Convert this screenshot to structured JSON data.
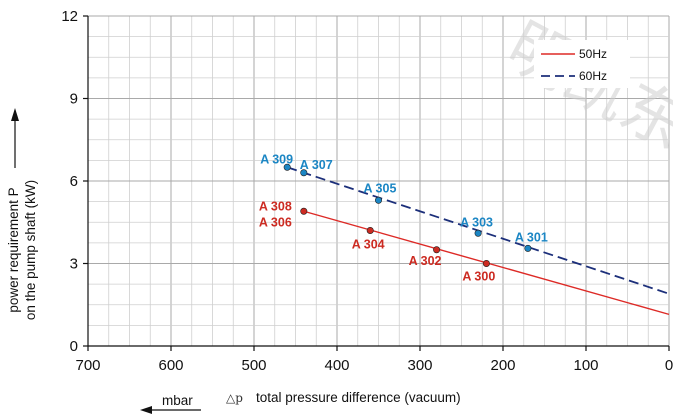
{
  "chart_data": {
    "type": "line",
    "xlabel": "total pressure difference (vacuum)",
    "xlabel_symbol": "△p",
    "x_unit": "mbar",
    "ylabel_line1": "power requirement P",
    "ylabel_line2": "on the pump shaft (kW)",
    "xlim": [
      700,
      0
    ],
    "x_reversed": true,
    "ylim": [
      0,
      12
    ],
    "x_ticks": [
      700,
      600,
      500,
      400,
      300,
      200,
      100,
      0
    ],
    "y_ticks": [
      0,
      3,
      6,
      9,
      12
    ],
    "grid": true,
    "legend_position": "top-right",
    "series": [
      {
        "name": "50Hz",
        "color": "#dd2a26",
        "dash": "solid",
        "x": [
          440,
          0
        ],
        "y": [
          4.9,
          1.15
        ]
      },
      {
        "name": "60Hz",
        "color": "#1c2f7a",
        "dash": "dashed",
        "x": [
          460,
          0
        ],
        "y": [
          6.5,
          1.9
        ]
      }
    ],
    "points": [
      {
        "label": "A 308",
        "x": 440,
        "y": 4.9,
        "color": "#cc2b22",
        "series": "50Hz"
      },
      {
        "label": "A 306",
        "x": 440,
        "y": 4.9,
        "color": "#cc2b22",
        "series": "50Hz"
      },
      {
        "label": "A 304",
        "x": 360,
        "y": 4.2,
        "color": "#cc2b22",
        "series": "50Hz"
      },
      {
        "label": "A 302",
        "x": 280,
        "y": 3.5,
        "color": "#cc2b22",
        "series": "50Hz"
      },
      {
        "label": "A 300",
        "x": 220,
        "y": 3.0,
        "color": "#cc2b22",
        "series": "50Hz"
      },
      {
        "label": "A 309",
        "x": 460,
        "y": 6.5,
        "color": "#1b86c4",
        "series": "60Hz"
      },
      {
        "label": "A 307",
        "x": 440,
        "y": 6.3,
        "color": "#1b86c4",
        "series": "60Hz"
      },
      {
        "label": "A 305",
        "x": 350,
        "y": 5.3,
        "color": "#1b86c4",
        "series": "60Hz"
      },
      {
        "label": "A 303",
        "x": 230,
        "y": 4.1,
        "color": "#1b86c4",
        "series": "60Hz"
      },
      {
        "label": "A 301",
        "x": 170,
        "y": 3.55,
        "color": "#1b86c4",
        "series": "60Hz"
      }
    ]
  },
  "watermark": "明凯东"
}
